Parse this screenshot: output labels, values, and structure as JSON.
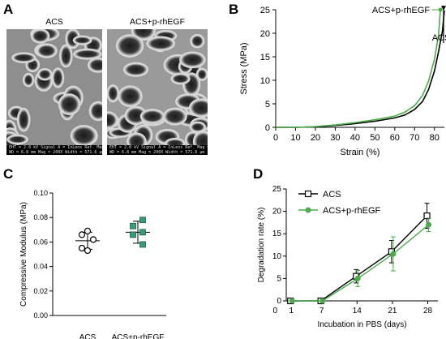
{
  "panels": {
    "a": {
      "letter": "A",
      "images": [
        {
          "title": "ACS",
          "meta_line1": "EHT = 2.0 kV   Signal A = InLens   Ref. Mag = Polaroid 545",
          "meta_line2": "WD = 6.8 mm    Mag = 200X   Width = 571.6 μm"
        },
        {
          "title": "ACS+p-rhEGF",
          "meta_line1": "EHT = 2.0 kV   Signal A = InLens   Ref. Mag = Polaroid 545",
          "meta_line2": "WD = 6.8 mm    Mag = 200X   Width = 571.6 μm"
        }
      ]
    },
    "b": {
      "letter": "B"
    },
    "c": {
      "letter": "C"
    },
    "d": {
      "letter": "D"
    }
  },
  "chart_data": [
    {
      "panel": "B",
      "type": "line",
      "xlabel": "Strain (%)",
      "ylabel": "Stress (MPa)",
      "xlim": [
        0,
        85
      ],
      "ylim": [
        0,
        25
      ],
      "xticks": [
        0,
        10,
        20,
        30,
        40,
        50,
        60,
        70,
        80
      ],
      "yticks": [
        0,
        5,
        10,
        15,
        20,
        25
      ],
      "series": [
        {
          "name": "ACS",
          "color": "#000000",
          "x": [
            0,
            10,
            20,
            30,
            40,
            50,
            60,
            65,
            70,
            74,
            77,
            80,
            82,
            84,
            85
          ],
          "y": [
            0,
            0,
            0.1,
            0.4,
            0.8,
            1.3,
            2.0,
            2.6,
            3.8,
            5.5,
            8.0,
            12.0,
            16.0,
            20.5,
            24.8
          ]
        },
        {
          "name": "ACS+p-rhEGF",
          "color": "#4cab4c",
          "x": [
            0,
            10,
            20,
            30,
            40,
            50,
            60,
            65,
            70,
            74,
            77,
            80,
            82,
            83
          ],
          "y": [
            0,
            0,
            0.15,
            0.5,
            1.0,
            1.6,
            2.4,
            3.2,
            4.6,
            6.8,
            9.8,
            14.5,
            19.5,
            25.0
          ]
        }
      ],
      "annotations": [
        "ACS",
        "ACS+p-rhEGF"
      ]
    },
    {
      "panel": "C",
      "type": "scatter",
      "ylabel": "Compressive Modulus (MPa)",
      "categories": [
        "ACS",
        "ACS+p-rhEGF"
      ],
      "ylim": [
        0,
        0.1
      ],
      "yticks": [
        "0.00",
        "0.02",
        "0.04",
        "0.06",
        "0.08",
        "0.10"
      ],
      "series": [
        {
          "name": "ACS",
          "color": "#000000",
          "marker": "open-circle",
          "values": [
            0.069,
            0.066,
            0.062,
            0.055,
            0.053
          ],
          "mean": 0.061,
          "sd": 0.007
        },
        {
          "name": "ACS+p-rhEGF",
          "color": "#3a9a78",
          "marker": "filled-square",
          "values": [
            0.078,
            0.073,
            0.068,
            0.066,
            0.058
          ],
          "mean": 0.068,
          "sd": 0.009
        }
      ]
    },
    {
      "panel": "D",
      "type": "line",
      "xlabel": "Incubation in PBS (days)",
      "ylabel": "Degradation rate (%)",
      "x": [
        1,
        7,
        14,
        21,
        28
      ],
      "xticks": [
        "0",
        "1",
        "7",
        "14",
        "21",
        "28"
      ],
      "ylim": [
        0,
        25
      ],
      "yticks": [
        "0",
        "5",
        "10",
        "15",
        "20",
        "25"
      ],
      "legend": "top-left",
      "series": [
        {
          "name": "ACS",
          "color": "#000000",
          "marker": "open-square",
          "values": [
            0,
            0,
            5.5,
            11,
            19
          ],
          "errors": [
            0,
            0,
            1.5,
            2.5,
            2.8
          ]
        },
        {
          "name": "ACS+p-rhEGF",
          "color": "#4cab4c",
          "marker": "filled-circle",
          "values": [
            0,
            0,
            5,
            10.5,
            17
          ],
          "errors": [
            0,
            0,
            1.8,
            3.8,
            1.5
          ]
        }
      ]
    }
  ]
}
